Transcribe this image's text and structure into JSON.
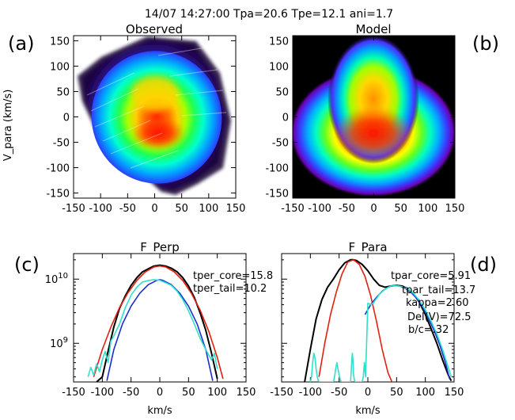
{
  "header": "14/07 14:27:00 Tpa=20.6 Tpe=12.1 ani=1.7",
  "panel_labels": {
    "a": "(a)",
    "b": "(b)",
    "c": "(c)",
    "d": "(d)"
  },
  "chart_data": [
    {
      "type": "heatmap",
      "title": "Observed",
      "ylabel": "V_para (km/s)",
      "xlim": [
        -150,
        150
      ],
      "ylim": [
        -160,
        160
      ],
      "xticks": [
        "-150",
        "-100",
        "-50",
        "0",
        "50",
        "100",
        "150"
      ],
      "yticks": [
        "-150",
        "-100",
        "-50",
        "0",
        "50",
        "100",
        "150"
      ],
      "colormap": [
        "#000000",
        "#5a00a0",
        "#3030ff",
        "#00b4ff",
        "#00ffd0",
        "#00ff40",
        "#a0ff00",
        "#ffff00",
        "#ff9000",
        "#ff1a00"
      ]
    },
    {
      "type": "heatmap",
      "title": "Model",
      "xlim": [
        -150,
        150
      ],
      "ylim": [
        -160,
        160
      ],
      "xticks": [
        "-150",
        "-100",
        "-50",
        "0",
        "50",
        "100",
        "150"
      ],
      "yticks": [
        "-150",
        "-100",
        "-50",
        "0",
        "50",
        "100",
        "150"
      ]
    },
    {
      "type": "line",
      "title": "F_Perp",
      "xlabel": "km/s",
      "yscale": "log",
      "xlim": [
        -150,
        150
      ],
      "ylim": [
        250000000.0,
        25000000000.0
      ],
      "xticks": [
        "-150",
        "-100",
        "-50",
        "0",
        "50",
        "100",
        "150"
      ],
      "yticks": [
        {
          "value": 10000000000.0,
          "base": "10",
          "exp": "10"
        },
        {
          "value": 1000000000.0,
          "base": "10",
          "exp": "9"
        }
      ],
      "annotations": [
        "tper_core=15.8",
        "tper_tail=10.2"
      ],
      "series": [
        {
          "color": "#000000",
          "x": [
            -110,
            -100,
            -90,
            -80,
            -70,
            -60,
            -50,
            -40,
            -30,
            -20,
            -10,
            0,
            10,
            20,
            30,
            40,
            50,
            60,
            70,
            80,
            90,
            100
          ],
          "y": [
            250000000.0,
            300000000.0,
            750000000.0,
            1800000000.0,
            3500000000.0,
            5500000000.0,
            8000000000.0,
            10500000000.0,
            13000000000.0,
            14500000000.0,
            16000000000.0,
            16500000000.0,
            16000000000.0,
            14800000000.0,
            13000000000.0,
            10500000000.0,
            7800000000.0,
            5200000000.0,
            3000000000.0,
            1600000000.0,
            700000000.0,
            280000000.0
          ]
        },
        {
          "color": "#e02010",
          "x": [
            -115,
            -100,
            -85,
            -70,
            -55,
            -40,
            -25,
            -10,
            0,
            10,
            25,
            40,
            55,
            70,
            85,
            100,
            110
          ],
          "y": [
            300000000.0,
            800000000.0,
            1800000000.0,
            3600000000.0,
            6200000000.0,
            9500000000.0,
            13000000000.0,
            15500000000.0,
            16000000000.0,
            15500000000.0,
            13000000000.0,
            9500000000.0,
            6000000000.0,
            3300000000.0,
            1550000000.0,
            600000000.0,
            280000000.0
          ]
        },
        {
          "color": "#1a2ed0",
          "x": [
            -92,
            -80,
            -65,
            -50,
            -35,
            -20,
            -5,
            0,
            5,
            20,
            35,
            50,
            65,
            80,
            92
          ],
          "y": [
            260000000.0,
            800000000.0,
            2000000000.0,
            3800000000.0,
            6000000000.0,
            8200000000.0,
            9600000000.0,
            9800000000.0,
            9600000000.0,
            8200000000.0,
            6000000000.0,
            3800000000.0,
            2000000000.0,
            800000000.0,
            260000000.0
          ]
        },
        {
          "color": "#30e0c8",
          "x": [
            -125,
            -120,
            -115,
            -110,
            -105,
            -100,
            -95,
            -90,
            -85,
            -80,
            -70,
            -60,
            -50,
            -40,
            -30,
            -20,
            -10,
            0,
            10,
            20,
            30,
            40,
            50,
            60,
            70,
            80,
            90,
            95,
            100
          ],
          "y": [
            300000000.0,
            420000000.0,
            320000000.0,
            480000000.0,
            360000000.0,
            550000000.0,
            750000000.0,
            500000000.0,
            1100000000.0,
            1300000000.0,
            2000000000.0,
            3600000000.0,
            5600000000.0,
            7500000000.0,
            9000000000.0,
            9500000000.0,
            9800000000.0,
            9600000000.0,
            8800000000.0,
            8000000000.0,
            6500000000.0,
            4800000000.0,
            3200000000.0,
            2000000000.0,
            1200000000.0,
            800000000.0,
            550000000.0,
            700000000.0,
            400000000.0
          ]
        }
      ]
    },
    {
      "type": "line",
      "title": "F_Para",
      "xlabel": "km/s",
      "yscale": "log",
      "xlim": [
        -150,
        150
      ],
      "ylim": [
        250000000.0,
        25000000000.0
      ],
      "xticks": [
        "-150",
        "-100",
        "-50",
        "0",
        "50",
        "100",
        "150"
      ],
      "annotations": [
        "tpar_core=5.91",
        "tpar_tail=13.7",
        "kappa=2.60",
        "Del(V)=72.5",
        "b/c=.32"
      ],
      "series": [
        {
          "color": "#000000",
          "x": [
            -110,
            -100,
            -90,
            -80,
            -70,
            -60,
            -50,
            -40,
            -30,
            -25,
            -20,
            -10,
            0,
            10,
            20,
            30,
            40,
            50,
            60,
            70,
            80,
            90,
            100,
            110,
            120,
            130,
            140,
            145
          ],
          "y": [
            250000000.0,
            800000000.0,
            2400000000.0,
            4800000000.0,
            7500000000.0,
            10000000000.0,
            14000000000.0,
            18000000000.0,
            20000000000.0,
            20000000000.0,
            19500000000.0,
            17000000000.0,
            13500000000.0,
            10000000000.0,
            8000000000.0,
            7500000000.0,
            7800000000.0,
            8000000000.0,
            7800000000.0,
            7000000000.0,
            5800000000.0,
            4300000000.0,
            2800000000.0,
            1700000000.0,
            1000000000.0,
            550000000.0,
            320000000.0,
            260000000.0
          ]
        },
        {
          "color": "#e02010",
          "x": [
            -85,
            -75,
            -65,
            -55,
            -45,
            -35,
            -25,
            -15,
            -5,
            5,
            15,
            25,
            35,
            42
          ],
          "y": [
            300000000.0,
            1000000000.0,
            2800000000.0,
            6200000000.0,
            12000000000.0,
            18500000000.0,
            20000000000.0,
            17000000000.0,
            11000000000.0,
            5500000000.0,
            2200000000.0,
            800000000.0,
            350000000.0,
            250000000.0
          ]
        },
        {
          "color": "#1a2ed0",
          "x": [
            -5,
            5,
            15,
            25,
            35,
            45,
            55,
            65,
            75,
            85,
            95,
            105,
            115,
            125,
            135,
            142
          ],
          "y": [
            2800000000.0,
            4000000000.0,
            5200000000.0,
            6500000000.0,
            7500000000.0,
            7900000000.0,
            7800000000.0,
            7200000000.0,
            6200000000.0,
            5000000000.0,
            3700000000.0,
            2500000000.0,
            1600000000.0,
            950000000.0,
            500000000.0,
            280000000.0
          ]
        },
        {
          "color": "#30e0c8",
          "x": [
            -100,
            -98,
            -96,
            -94,
            -92,
            -90,
            -88,
            -86,
            -84,
            -60,
            -58,
            -56,
            -54,
            -52,
            -50,
            -48,
            -46,
            -30,
            -29,
            -28,
            -27,
            -26,
            -25,
            -24,
            -23,
            -22,
            -10,
            -8,
            -6,
            -4,
            0,
            5,
            10,
            20,
            30,
            40,
            50,
            60,
            70,
            80,
            90,
            100,
            110,
            120,
            130,
            140,
            145
          ],
          "y": [
            250000000.0,
            300000000.0,
            500000000.0,
            700000000.0,
            600000000.0,
            400000000.0,
            300000000.0,
            260000000.0,
            250000000.0,
            250000000.0,
            300000000.0,
            400000000.0,
            500000000.0,
            400000000.0,
            320000000.0,
            270000000.0,
            250000000.0,
            250000000.0,
            350000000.0,
            550000000.0,
            700000000.0,
            550000000.0,
            350000000.0,
            280000000.0,
            260000000.0,
            250000000.0,
            250000000.0,
            300000000.0,
            500000000.0,
            300000000.0,
            4200000000.0,
            4000000000.0,
            4300000000.0,
            5800000000.0,
            7000000000.0,
            7800000000.0,
            7900000000.0,
            7600000000.0,
            7000000000.0,
            5900000000.0,
            4600000000.0,
            3300000000.0,
            2200000000.0,
            1400000000.0,
            800000000.0,
            420000000.0,
            300000000.0
          ]
        }
      ]
    }
  ]
}
